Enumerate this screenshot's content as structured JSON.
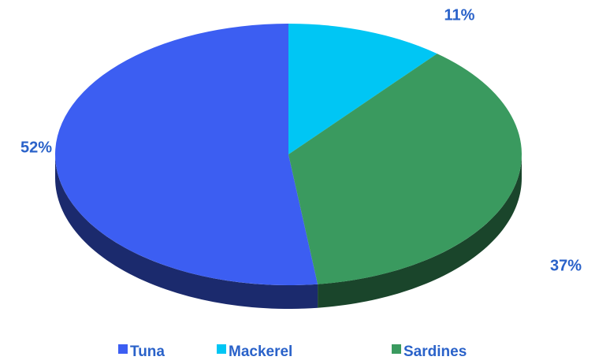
{
  "chart_data": {
    "type": "pie",
    "categories": [
      "Tuna",
      "Mackerel",
      "Sardines"
    ],
    "values": [
      52,
      11,
      37
    ],
    "value_labels": [
      "52%",
      "11%",
      "37%"
    ],
    "colors": [
      "#3c5ef2",
      "#00c6f4",
      "#3a9a5f"
    ],
    "legend": "bottom"
  }
}
